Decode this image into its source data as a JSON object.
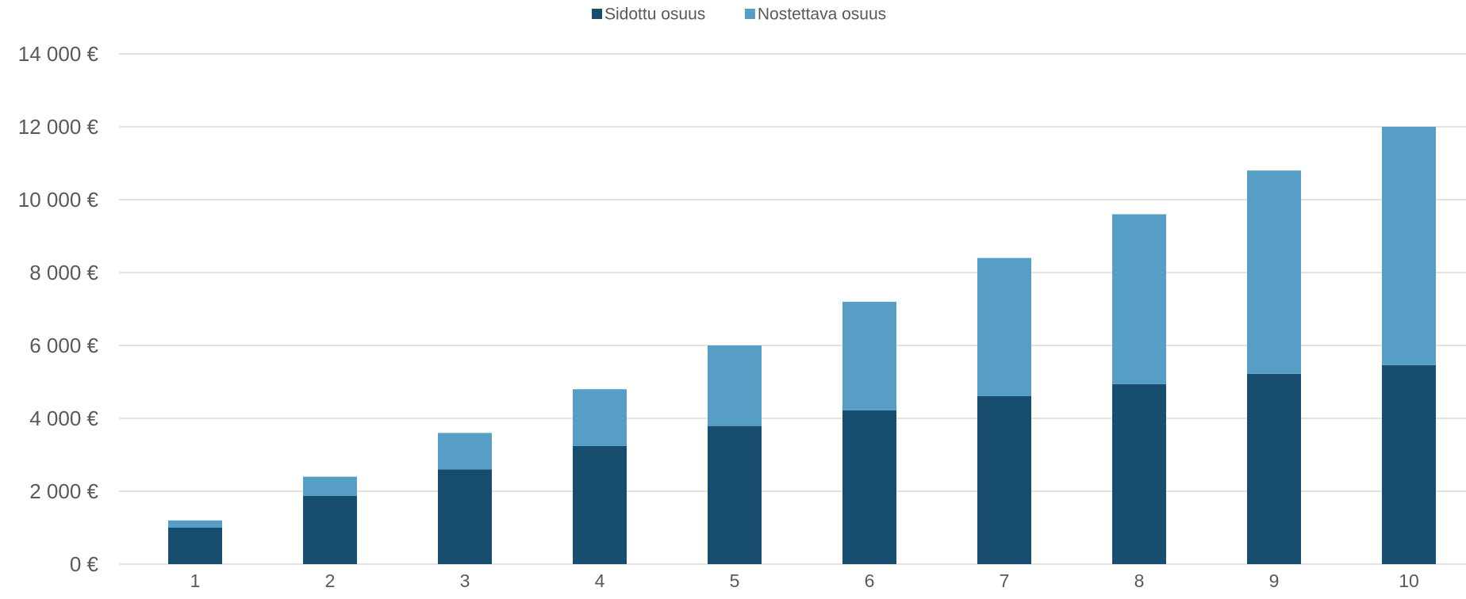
{
  "chart_data": {
    "type": "bar",
    "stacked": true,
    "categories": [
      "1",
      "2",
      "3",
      "4",
      "5",
      "6",
      "7",
      "8",
      "9",
      "10"
    ],
    "series": [
      {
        "name": "Sidottu osuus",
        "color": "#174e70",
        "values": [
          1000,
          1870,
          2600,
          3240,
          3790,
          4220,
          4610,
          4940,
          5220,
          5460
        ]
      },
      {
        "name": "Nostettava osuus",
        "color": "#579ec7",
        "values": [
          200,
          530,
          1000,
          1560,
          2210,
          2980,
          3790,
          4660,
          5580,
          6540
        ]
      }
    ],
    "ylim": [
      0,
      14000
    ],
    "yticks": [
      0,
      2000,
      4000,
      6000,
      8000,
      10000,
      12000,
      14000
    ],
    "ytick_labels": [
      "0 €",
      "2 000 €",
      "4 000 €",
      "6 000 €",
      "8 000 €",
      "10 000 €",
      "12 000 €",
      "14 000 €"
    ],
    "grid": true,
    "legend_position": "top-center",
    "gridline_color": "#d9d9d9",
    "text_color": "#595959"
  }
}
